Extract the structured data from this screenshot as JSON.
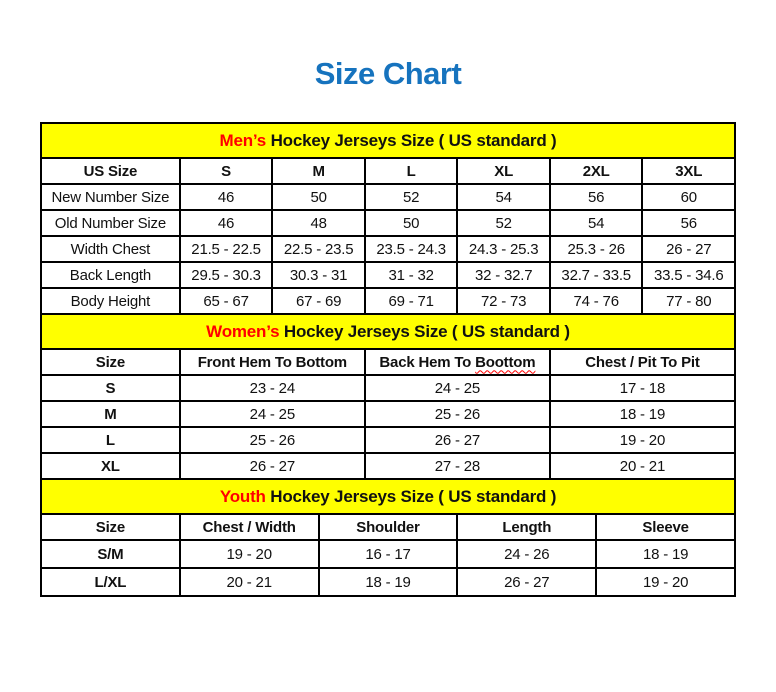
{
  "page": {
    "title": "Size Chart"
  },
  "colors": {
    "title_blue": "#1673BE",
    "highlight_red": "#FF0000",
    "band_yellow": "#FFFF00",
    "text_ink": "#111111"
  },
  "sections": [
    {
      "id": "mens",
      "heading": {
        "highlight": "Men’s",
        "rest": " Hockey Jerseys Size ( US standard )"
      },
      "columns": [
        {
          "label": "US Size"
        },
        {
          "label": "S"
        },
        {
          "label": "M"
        },
        {
          "label": "L"
        },
        {
          "label": "XL"
        },
        {
          "label": "2XL"
        },
        {
          "label": "3XL"
        }
      ],
      "rows": [
        {
          "label": "New Number Size",
          "values": [
            "46",
            "50",
            "52",
            "54",
            "56",
            "60"
          ]
        },
        {
          "label": "Old Number Size",
          "values": [
            "46",
            "48",
            "50",
            "52",
            "54",
            "56"
          ]
        },
        {
          "label": "Width Chest",
          "values": [
            "21.5 - 22.5",
            "22.5 - 23.5",
            "23.5 - 24.3",
            "24.3 - 25.3",
            "25.3 - 26",
            "26 - 27"
          ]
        },
        {
          "label": "Back Length",
          "values": [
            "29.5 - 30.3",
            "30.3 - 31",
            "31 - 32",
            "32 - 32.7",
            "32.7 - 33.5",
            "33.5 - 34.6"
          ]
        },
        {
          "label": "Body Height",
          "values": [
            "65 - 67",
            "67 - 69",
            "69 - 71",
            "72 - 73",
            "74 - 76",
            "77 - 80"
          ]
        }
      ]
    },
    {
      "id": "womens",
      "heading": {
        "highlight": "Women’s",
        "rest": " Hockey Jerseys Size ( US standard )"
      },
      "columns": [
        {
          "label": "Size"
        },
        {
          "label": "Front Hem To Bottom"
        },
        {
          "label": "Back Hem To ",
          "misspelled": "Boottom"
        },
        {
          "label": "Chest / Pit To Pit"
        }
      ],
      "rows": [
        {
          "label": "S",
          "values": [
            "23 - 24",
            "24 - 25",
            "17 - 18"
          ]
        },
        {
          "label": "M",
          "values": [
            "24 - 25",
            "25 - 26",
            "18 - 19"
          ]
        },
        {
          "label": "L",
          "values": [
            "25 - 26",
            "26 - 27",
            "19 - 20"
          ]
        },
        {
          "label": "XL",
          "values": [
            "26 - 27",
            "27 - 28",
            "20 - 21"
          ]
        }
      ]
    },
    {
      "id": "youth",
      "heading": {
        "highlight": "Youth",
        "rest": " Hockey Jerseys Size ( US standard )"
      },
      "columns": [
        {
          "label": "Size"
        },
        {
          "label": "Chest / Width"
        },
        {
          "label": "Shoulder"
        },
        {
          "label": "Length"
        },
        {
          "label": "Sleeve"
        }
      ],
      "rows": [
        {
          "label": "S/M",
          "values": [
            "19 - 20",
            "16 - 17",
            "24 - 26",
            "18 - 19"
          ]
        },
        {
          "label": "L/XL",
          "values": [
            "20 - 21",
            "18 - 19",
            "26 - 27",
            "19 - 20"
          ]
        }
      ]
    }
  ]
}
